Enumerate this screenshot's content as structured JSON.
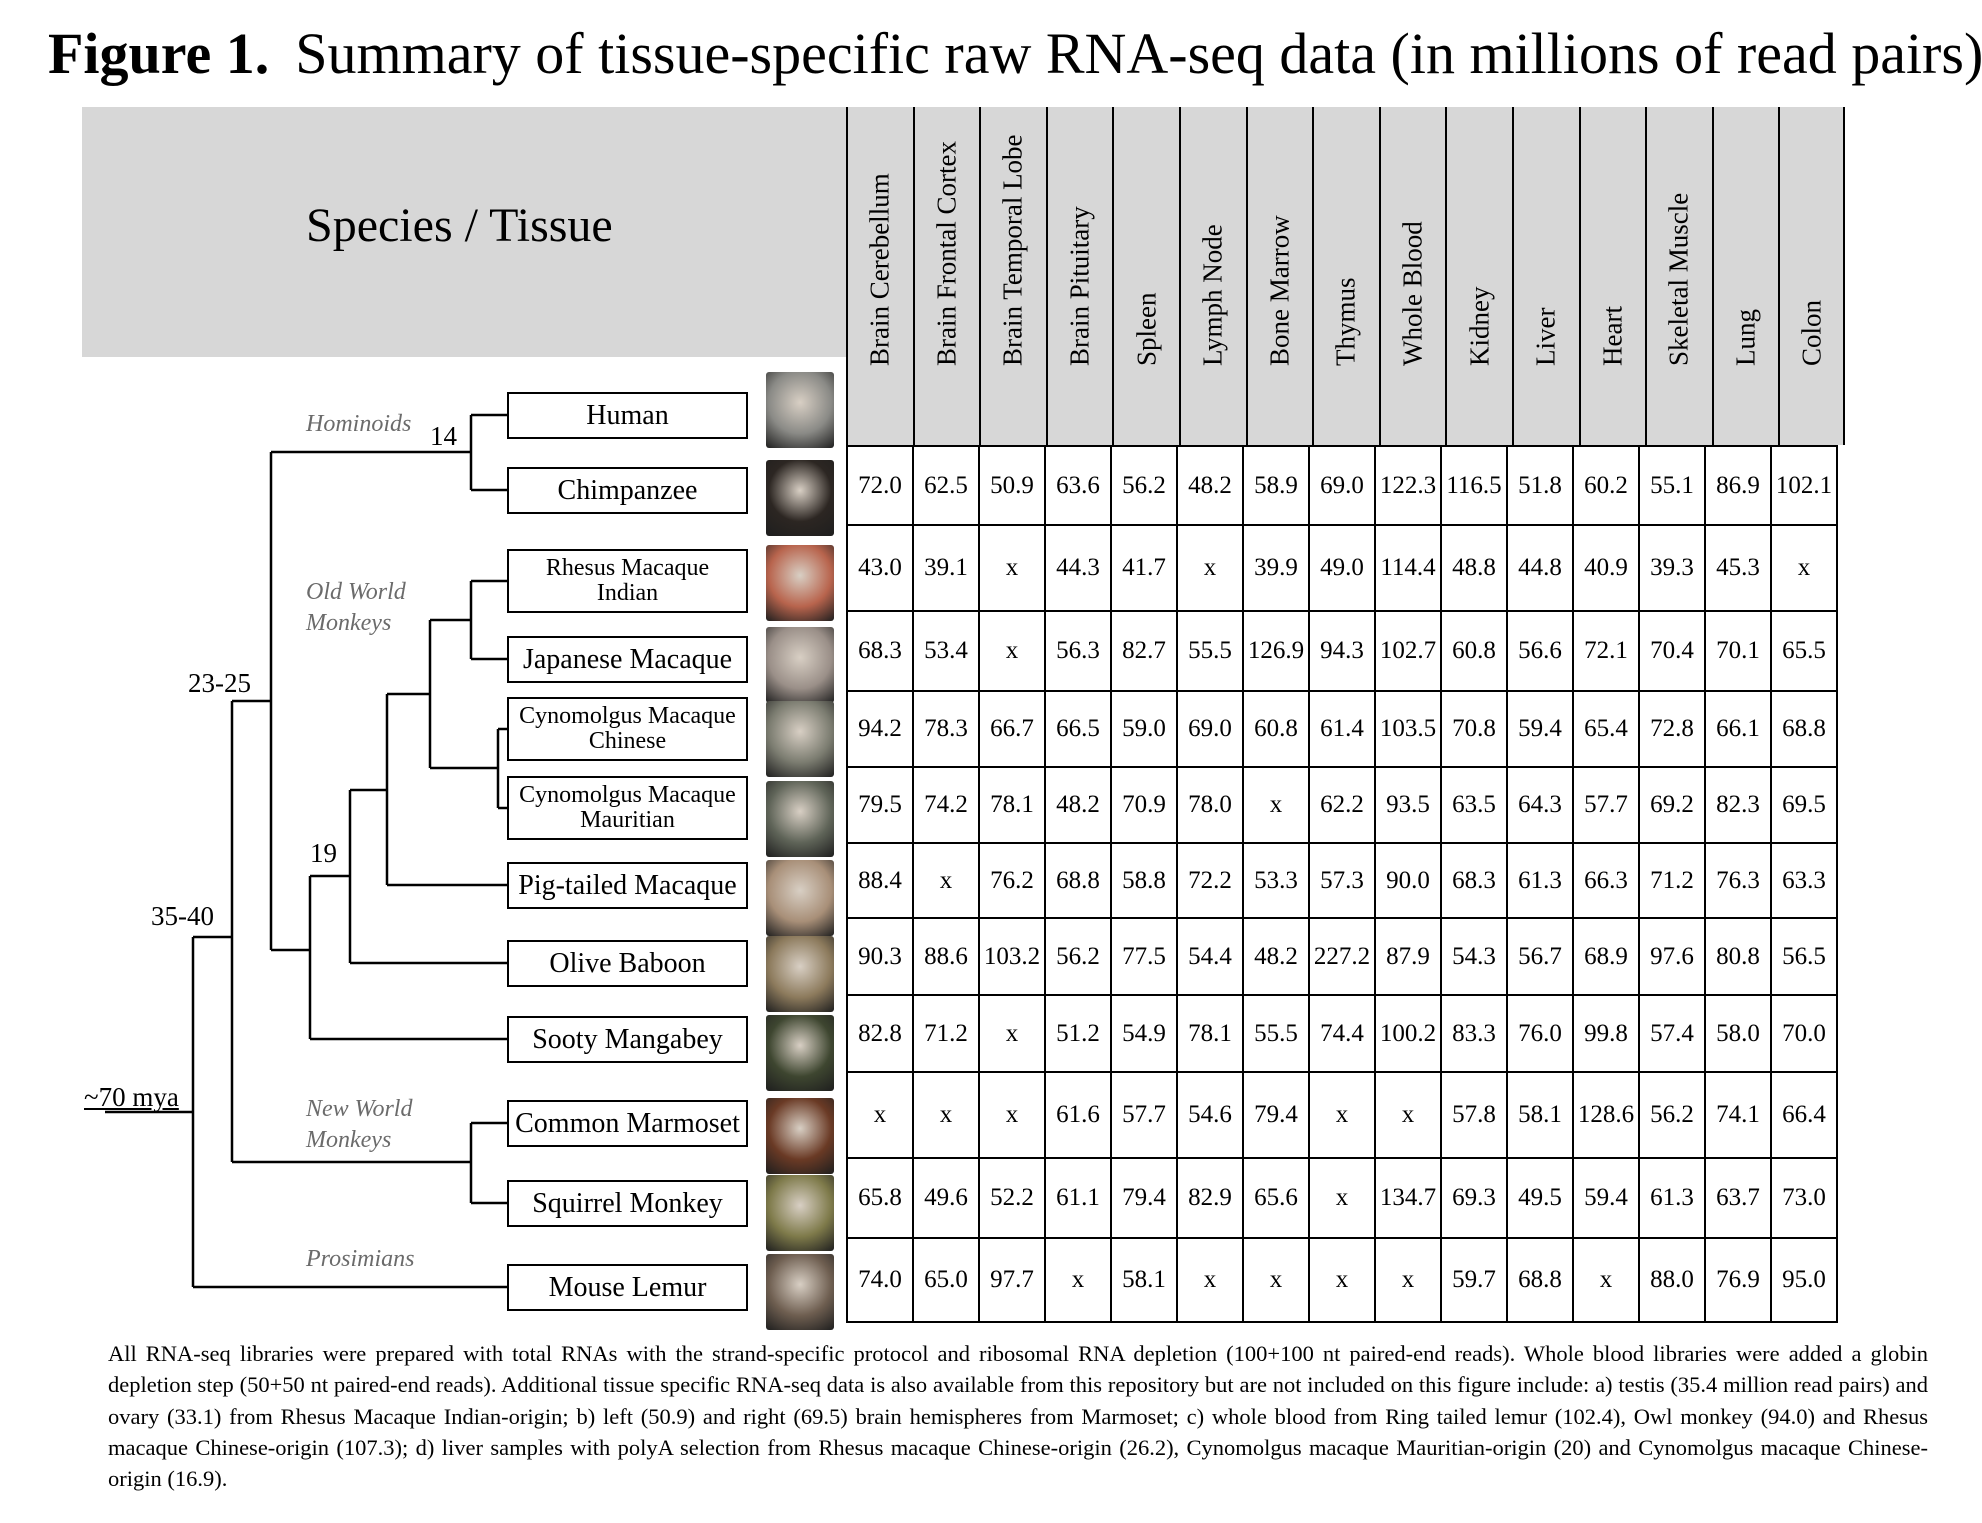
{
  "figure": {
    "label": "Figure 1.",
    "title": "Summary of tissue-specific raw RNA-seq data (in millions of read pairs)"
  },
  "corner_label": "Species / Tissue",
  "tissues": [
    "Brain Cerebellum",
    "Brain Frontal Cortex",
    "Brain Temporal Lobe",
    "Brain Pituitary",
    "Spleen",
    "Lymph Node",
    "Bone Marrow",
    "Thymus",
    "Whole Blood",
    "Kidney",
    "Liver",
    "Heart",
    "Skeletal Muscle",
    "Lung",
    "Colon"
  ],
  "species": [
    {
      "name": "Human",
      "photo_color": "#8a8a86",
      "values": []
    },
    {
      "name": "Chimpanzee",
      "photo_color": "#2c2622",
      "values": [
        "72.0",
        "62.5",
        "50.9",
        "63.6",
        "56.2",
        "48.2",
        "58.9",
        "69.0",
        "122.3",
        "116.5",
        "51.8",
        "60.2",
        "55.1",
        "86.9",
        "102.1"
      ]
    },
    {
      "name": "Rhesus Macaque Indian",
      "photo_color": "#b8644d",
      "values": [
        "43.0",
        "39.1",
        "x",
        "44.3",
        "41.7",
        "x",
        "39.9",
        "49.0",
        "114.4",
        "48.8",
        "44.8",
        "40.9",
        "39.3",
        "45.3",
        "x"
      ]
    },
    {
      "name": "Japanese Macaque",
      "photo_color": "#9a8f88",
      "values": [
        "68.3",
        "53.4",
        "x",
        "56.3",
        "82.7",
        "55.5",
        "126.9",
        "94.3",
        "102.7",
        "60.8",
        "56.6",
        "72.1",
        "70.4",
        "70.1",
        "65.5"
      ]
    },
    {
      "name": "Cynomolgus Macaque Chinese",
      "photo_color": "#7b7c70",
      "values": [
        "94.2",
        "78.3",
        "66.7",
        "66.5",
        "59.0",
        "69.0",
        "60.8",
        "61.4",
        "103.5",
        "70.8",
        "59.4",
        "65.4",
        "72.8",
        "66.1",
        "68.8"
      ]
    },
    {
      "name": "Cynomolgus Macaque Mauritian",
      "photo_color": "#5f6458",
      "values": [
        "79.5",
        "74.2",
        "78.1",
        "48.2",
        "70.9",
        "78.0",
        "x",
        "62.2",
        "93.5",
        "63.5",
        "64.3",
        "57.7",
        "69.2",
        "82.3",
        "69.5"
      ]
    },
    {
      "name": "Pig-tailed Macaque",
      "photo_color": "#a88f78",
      "values": [
        "88.4",
        "x",
        "76.2",
        "68.8",
        "58.8",
        "72.2",
        "53.3",
        "57.3",
        "90.0",
        "68.3",
        "61.3",
        "66.3",
        "71.2",
        "76.3",
        "63.3"
      ]
    },
    {
      "name": "Olive Baboon",
      "photo_color": "#8c7a5c",
      "values": [
        "90.3",
        "88.6",
        "103.2",
        "56.2",
        "77.5",
        "54.4",
        "48.2",
        "227.2",
        "87.9",
        "54.3",
        "56.7",
        "68.9",
        "97.6",
        "80.8",
        "56.5"
      ]
    },
    {
      "name": "Sooty Mangabey",
      "photo_color": "#3e4630",
      "values": [
        "82.8",
        "71.2",
        "x",
        "51.2",
        "54.9",
        "78.1",
        "55.5",
        "74.4",
        "100.2",
        "83.3",
        "76.0",
        "99.8",
        "57.4",
        "58.0",
        "70.0"
      ]
    },
    {
      "name": "Common Marmoset",
      "photo_color": "#6a3a25",
      "values": [
        "x",
        "x",
        "x",
        "61.6",
        "57.7",
        "54.6",
        "79.4",
        "x",
        "x",
        "57.8",
        "58.1",
        "128.6",
        "56.2",
        "74.1",
        "66.4"
      ]
    },
    {
      "name": "Squirrel Monkey",
      "photo_color": "#7e7a4a",
      "values": [
        "65.8",
        "49.6",
        "52.2",
        "61.1",
        "79.4",
        "82.9",
        "65.6",
        "x",
        "134.7",
        "69.3",
        "49.5",
        "59.4",
        "61.3",
        "63.7",
        "73.0"
      ]
    },
    {
      "name": "Mouse Lemur",
      "photo_color": "#6e5e50",
      "values": [
        "74.0",
        "65.0",
        "97.7",
        "x",
        "58.1",
        "x",
        "x",
        "x",
        "x",
        "59.7",
        "68.8",
        "x",
        "88.0",
        "76.9",
        "95.0"
      ]
    }
  ],
  "clades": {
    "hominoids": "Hominoids",
    "old_world_1": "Old World",
    "old_world_2": "Monkeys",
    "new_world_1": "New World",
    "new_world_2": "Monkeys",
    "prosimians": "Prosimians"
  },
  "divergence_times": {
    "t14": "14",
    "t23_25": "23-25",
    "t19": "19",
    "t35_40": "35-40",
    "t70": "~70 mya"
  },
  "caption": "All RNA-seq libraries were prepared with total RNAs with the strand-specific protocol and ribosomal RNA depletion (100+100 nt paired-end reads). Whole blood libraries were added a globin depletion step (50+50 nt paired-end reads). Additional tissue specific RNA-seq data is also available from this repository but are not included on this figure include: a) testis (35.4 million read pairs) and ovary (33.1) from Rhesus Macaque Indian-origin; b) left (50.9) and right (69.5) brain hemispheres from Marmoset; c) whole blood from Ring tailed lemur (102.4), Owl monkey (94.0) and Rhesus macaque Chinese-origin (107.3); d) liver samples with polyA selection from Rhesus macaque Chinese-origin (26.2), Cynomolgus macaque Mauritian-origin (20) and Cynomolgus macaque Chinese-origin (16.9)."
}
